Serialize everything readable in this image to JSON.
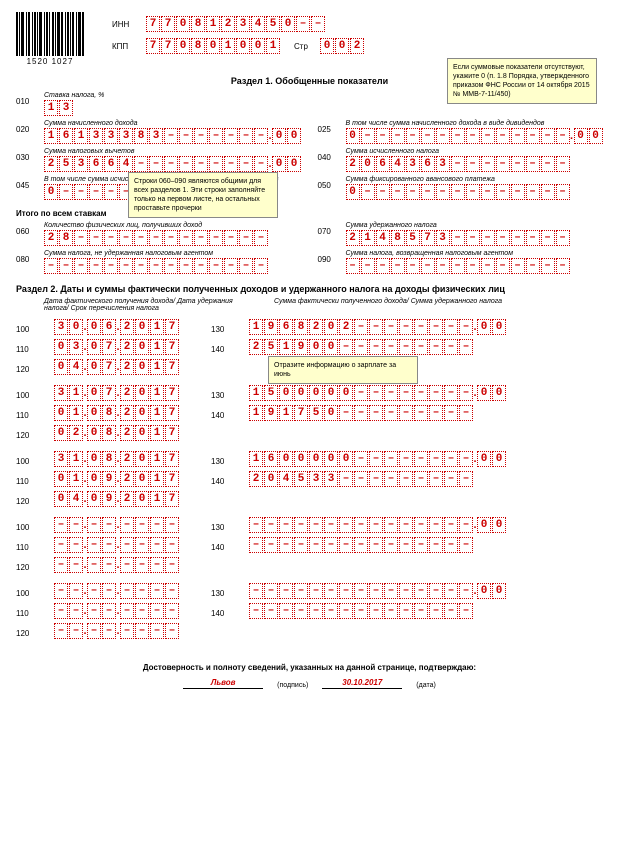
{
  "barcode_number": "1520 1027",
  "inn_label": "ИНН",
  "inn": [
    "7",
    "7",
    "0",
    "8",
    "1",
    "2",
    "3",
    "4",
    "5",
    "0",
    "–",
    "–"
  ],
  "kpp_label": "КПП",
  "kpp": [
    "7",
    "7",
    "0",
    "8",
    "0",
    "1",
    "0",
    "0",
    "1"
  ],
  "page_label": "Стр",
  "page": [
    "0",
    "0",
    "2"
  ],
  "section1_title": "Раздел 1. Обобщенные показатели",
  "callout1": "Если суммовые показатели отсутствуют, укажите 0 (п. 1.8 Порядка, утвержденного приказом ФНС России от 14 октября 2015 № ММВ-7-11/450)",
  "callout2": "Строки 060–090 являются общими для всех разделов 1. Эти строки заполняйте только на первом листе, на остальных проставьте прочерки",
  "callout3": "Отразите информацию о зарплате за июнь",
  "rate_label": "Ставка налога, %",
  "line010": [
    "1",
    "3"
  ],
  "label020": "Сумма начисленного дохода",
  "line020_int": [
    "1",
    "6",
    "1",
    "3",
    "3",
    "3",
    "8",
    "3",
    "–",
    "–",
    "–",
    "–",
    "–",
    "–",
    "–"
  ],
  "line020_dec": [
    "0",
    "0"
  ],
  "label025": "В том числе сумма начисленного дохода в виде дивидендов",
  "line025_int": [
    "0",
    "–",
    "–",
    "–",
    "–",
    "–",
    "–",
    "–",
    "–",
    "–",
    "–",
    "–",
    "–",
    "–",
    "–"
  ],
  "line025_dec": [
    "0",
    "0"
  ],
  "label030": "Сумма налоговых вычетов",
  "line030_int": [
    "2",
    "5",
    "3",
    "6",
    "6",
    "4",
    "–",
    "–",
    "–",
    "–",
    "–",
    "–",
    "–",
    "–",
    "–"
  ],
  "line030_dec": [
    "0",
    "0"
  ],
  "label040": "Сумма исчисленного налога",
  "line040": [
    "2",
    "0",
    "6",
    "4",
    "3",
    "6",
    "3",
    "–",
    "–",
    "–",
    "–",
    "–",
    "–",
    "–",
    "–"
  ],
  "label045": "В том числе сумма исчисленного налога на доходы в виде дивидендов",
  "line045": [
    "0",
    "–",
    "–",
    "–",
    "–",
    "–",
    "–",
    "–",
    "–",
    "–",
    "–",
    "–",
    "–",
    "–",
    "–"
  ],
  "label050": "Сумма фиксированного авансового платежа",
  "line050": [
    "0",
    "–",
    "–",
    "–",
    "–",
    "–",
    "–",
    "–",
    "–",
    "–",
    "–",
    "–",
    "–",
    "–",
    "–"
  ],
  "total_label": "Итого по всем ставкам",
  "label060": "Количество физических лиц, получивших доход",
  "line060": [
    "2",
    "8",
    "–",
    "–",
    "–",
    "–",
    "–",
    "–",
    "–",
    "–",
    "–",
    "–",
    "–",
    "–",
    "–"
  ],
  "label070": "Сумма удержанного налога",
  "line070": [
    "2",
    "1",
    "4",
    "8",
    "5",
    "7",
    "3",
    "–",
    "–",
    "–",
    "–",
    "–",
    "–",
    "–",
    "–"
  ],
  "label080": "Сумма налога, не удержанная налоговым агентом",
  "line080": [
    "–",
    "–",
    "–",
    "–",
    "–",
    "–",
    "–",
    "–",
    "–",
    "–",
    "–",
    "–",
    "–",
    "–",
    "–"
  ],
  "label090": "Сумма налога, возвращенная налоговым агентом",
  "line090": [
    "–",
    "–",
    "–",
    "–",
    "–",
    "–",
    "–",
    "–",
    "–",
    "–",
    "–",
    "–",
    "–",
    "–",
    "–"
  ],
  "section2_title": "Раздел 2. Даты и суммы фактически полученных доходов и удержанного налога на доходы физических лиц",
  "sec2_left_header": "Дата фактического получения дохода/\nДата удержания налога/\nСрок перечисления налога",
  "sec2_right_header": "Сумма фактически полученного дохода/\nСумма удержанного налога",
  "sec2_groups": [
    {
      "d100": [
        "3",
        "0",
        "0",
        "6",
        "2",
        "0",
        "1",
        "7"
      ],
      "d110": [
        "0",
        "3",
        "0",
        "7",
        "2",
        "0",
        "1",
        "7"
      ],
      "d120": [
        "0",
        "4",
        "0",
        "7",
        "2",
        "0",
        "1",
        "7"
      ],
      "a130": [
        "1",
        "9",
        "6",
        "8",
        "2",
        "0",
        "2",
        "–",
        "–",
        "–",
        "–",
        "–",
        "–",
        "–",
        "–"
      ],
      "a130d": [
        "0",
        "0"
      ],
      "a140": [
        "2",
        "5",
        "1",
        "9",
        "0",
        "0",
        "–",
        "–",
        "–",
        "–",
        "–",
        "–",
        "–",
        "–",
        "–"
      ]
    },
    {
      "d100": [
        "3",
        "1",
        "0",
        "7",
        "2",
        "0",
        "1",
        "7"
      ],
      "d110": [
        "0",
        "1",
        "0",
        "8",
        "2",
        "0",
        "1",
        "7"
      ],
      "d120": [
        "0",
        "2",
        "0",
        "8",
        "2",
        "0",
        "1",
        "7"
      ],
      "a130": [
        "1",
        "5",
        "0",
        "0",
        "0",
        "0",
        "0",
        "–",
        "–",
        "–",
        "–",
        "–",
        "–",
        "–",
        "–"
      ],
      "a130d": [
        "0",
        "0"
      ],
      "a140": [
        "1",
        "9",
        "1",
        "7",
        "5",
        "0",
        "–",
        "–",
        "–",
        "–",
        "–",
        "–",
        "–",
        "–",
        "–"
      ]
    },
    {
      "d100": [
        "3",
        "1",
        "0",
        "8",
        "2",
        "0",
        "1",
        "7"
      ],
      "d110": [
        "0",
        "1",
        "0",
        "9",
        "2",
        "0",
        "1",
        "7"
      ],
      "d120": [
        "0",
        "4",
        "0",
        "9",
        "2",
        "0",
        "1",
        "7"
      ],
      "a130": [
        "1",
        "6",
        "0",
        "0",
        "0",
        "0",
        "0",
        "–",
        "–",
        "–",
        "–",
        "–",
        "–",
        "–",
        "–"
      ],
      "a130d": [
        "0",
        "0"
      ],
      "a140": [
        "2",
        "0",
        "4",
        "5",
        "3",
        "3",
        "–",
        "–",
        "–",
        "–",
        "–",
        "–",
        "–",
        "–",
        "–"
      ]
    },
    {
      "d100": [
        "–",
        "–",
        "–",
        "–",
        "–",
        "–",
        "–",
        "–"
      ],
      "d110": [
        "–",
        "–",
        "–",
        "–",
        "–",
        "–",
        "–",
        "–"
      ],
      "d120": [
        "–",
        "–",
        "–",
        "–",
        "–",
        "–",
        "–",
        "–"
      ],
      "a130": [
        "–",
        "–",
        "–",
        "–",
        "–",
        "–",
        "–",
        "–",
        "–",
        "–",
        "–",
        "–",
        "–",
        "–",
        "–"
      ],
      "a130d": [
        "0",
        "0"
      ],
      "a140": [
        "–",
        "–",
        "–",
        "–",
        "–",
        "–",
        "–",
        "–",
        "–",
        "–",
        "–",
        "–",
        "–",
        "–",
        "–"
      ]
    },
    {
      "d100": [
        "–",
        "–",
        "–",
        "–",
        "–",
        "–",
        "–",
        "–"
      ],
      "d110": [
        "–",
        "–",
        "–",
        "–",
        "–",
        "–",
        "–",
        "–"
      ],
      "d120": [
        "–",
        "–",
        "–",
        "–",
        "–",
        "–",
        "–",
        "–"
      ],
      "a130": [
        "–",
        "–",
        "–",
        "–",
        "–",
        "–",
        "–",
        "–",
        "–",
        "–",
        "–",
        "–",
        "–",
        "–",
        "–"
      ],
      "a130d": [
        "0",
        "0"
      ],
      "a140": [
        "–",
        "–",
        "–",
        "–",
        "–",
        "–",
        "–",
        "–",
        "–",
        "–",
        "–",
        "–",
        "–",
        "–",
        "–"
      ]
    }
  ],
  "footer_text": "Достоверность и полноту сведений, указанных на данной странице, подтверждаю:",
  "signature": "Львов",
  "sig_label": "(подпись)",
  "date_signed": "30.10.2017",
  "date_label": "(дата)"
}
